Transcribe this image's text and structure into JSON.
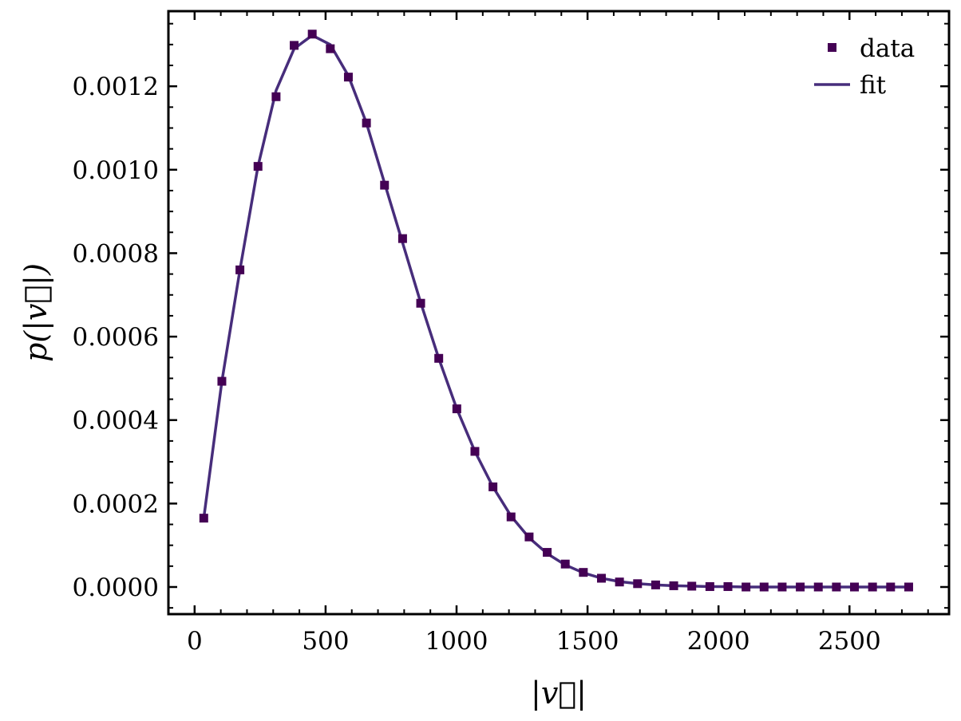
{
  "chart_data": {
    "type": "scatter",
    "xlabel": "|v⃗|",
    "ylabel": "p(|v⃗|)",
    "xlim": [
      -100,
      2880
    ],
    "ylim": [
      -6.5e-05,
      0.00138
    ],
    "x_ticks": [
      0,
      500,
      1000,
      1500,
      2000,
      2500
    ],
    "x_tick_labels": [
      "0",
      "500",
      "1000",
      "1500",
      "2000",
      "2500"
    ],
    "y_ticks": [
      0.0,
      0.0002,
      0.0004,
      0.0006,
      0.0008,
      0.001,
      0.0012
    ],
    "y_tick_labels": [
      "0.0000",
      "0.0002",
      "0.0004",
      "0.0006",
      "0.0008",
      "0.0010",
      "0.0012"
    ],
    "legend_position": "top-right",
    "grid": false,
    "series": [
      {
        "name": "data",
        "kind": "markers",
        "color": "#440154",
        "x": [
          35,
          104,
          173,
          242,
          311,
          380,
          449,
          518,
          587,
          656,
          725,
          794,
          863,
          932,
          1001,
          1070,
          1139,
          1208,
          1277,
          1346,
          1415,
          1484,
          1553,
          1622,
          1691,
          1760,
          1829,
          1898,
          1967,
          2036,
          2105,
          2174,
          2243,
          2312,
          2381,
          2450,
          2519,
          2588,
          2657,
          2726
        ],
        "y": [
          0.000165,
          0.000493,
          0.00076,
          0.001008,
          0.001175,
          0.001298,
          0.001325,
          0.00129,
          0.001222,
          0.001112,
          0.000963,
          0.000835,
          0.00068,
          0.000548,
          0.000427,
          0.000325,
          0.00024,
          0.000168,
          0.00012,
          8.3e-05,
          5.5e-05,
          3.5e-05,
          2.1e-05,
          1.2e-05,
          8e-06,
          5e-06,
          3e-06,
          2e-06,
          1e-06,
          1e-06,
          0.0,
          0.0,
          0.0,
          0.0,
          0.0,
          0.0,
          0.0,
          0.0,
          0.0,
          0.0
        ]
      },
      {
        "name": "fit",
        "kind": "line",
        "color": "#472d7b",
        "x": [
          35,
          104,
          173,
          242,
          311,
          380,
          449,
          518,
          587,
          656,
          725,
          794,
          863,
          932,
          1001,
          1070,
          1139,
          1208,
          1277,
          1346,
          1415,
          1484,
          1553,
          1622,
          1691,
          1760,
          1829,
          1898,
          1967,
          2036,
          2105,
          2174,
          2243,
          2312,
          2381,
          2450,
          2519,
          2588,
          2657,
          2726
        ],
        "y": [
          0.000165,
          0.000493,
          0.00076,
          0.001008,
          0.00119,
          0.00129,
          0.001322,
          0.0013,
          0.001225,
          0.001112,
          0.000968,
          0.000825,
          0.000682,
          0.000548,
          0.000427,
          0.000325,
          0.00024,
          0.00017,
          0.000118,
          8e-05,
          5.3e-05,
          3.4e-05,
          2.1e-05,
          1.3e-05,
          8e-06,
          5e-06,
          3e-06,
          2e-06,
          1e-06,
          1e-06,
          0.0,
          0.0,
          0.0,
          0.0,
          0.0,
          0.0,
          0.0,
          0.0,
          0.0,
          0.0
        ]
      }
    ]
  }
}
